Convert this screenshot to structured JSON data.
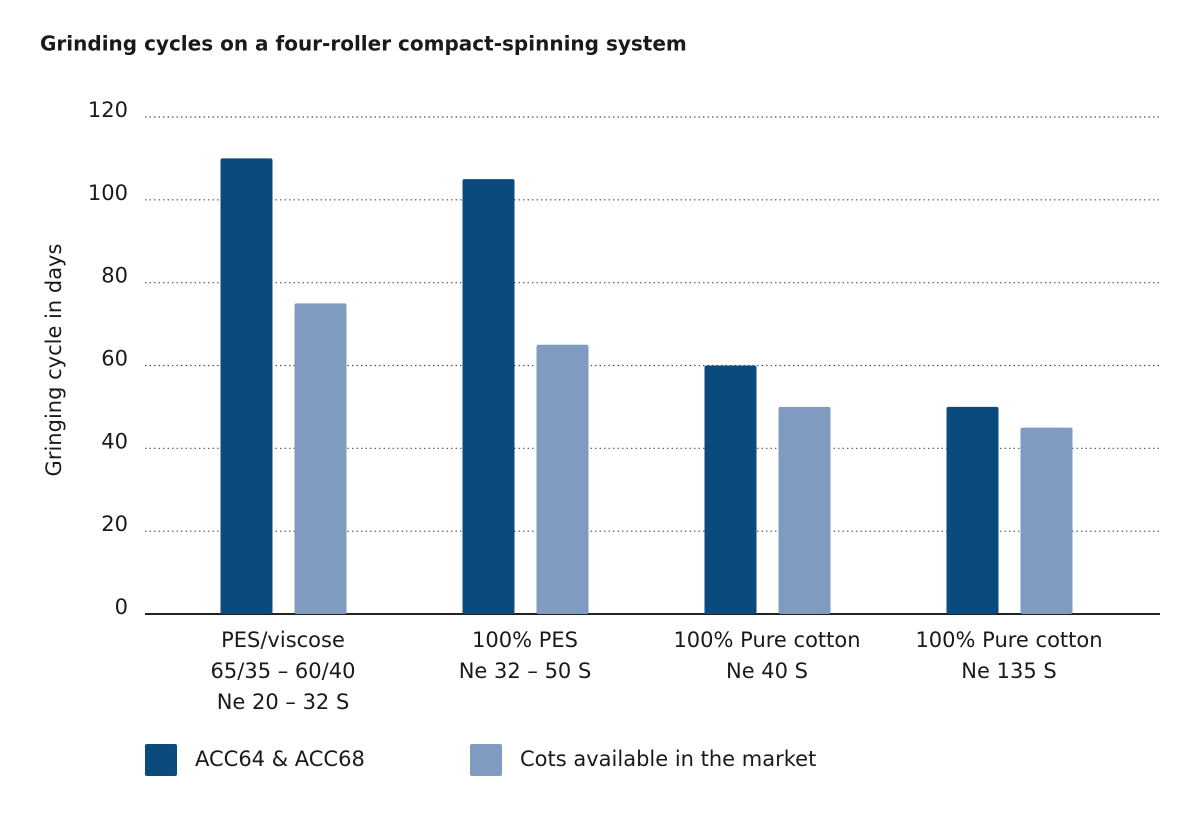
{
  "chart_data": {
    "type": "bar",
    "title": "Grinding cycles on a four-roller compact-spinning system",
    "y_label": "Gringing cycle in days",
    "categories": [
      [
        "PES/viscose",
        "65/35 – 60/40",
        "Ne 20 – 32 S"
      ],
      [
        "100% PES",
        "Ne 32 – 50 S"
      ],
      [
        "100% Pure cotton",
        "Ne 40 S"
      ],
      [
        "100% Pure cotton",
        "Ne 135 S"
      ]
    ],
    "series": [
      {
        "name": "ACC64 & ACC68",
        "color": "#0b4a7d",
        "values": [
          110,
          105,
          60,
          50
        ]
      },
      {
        "name": "Cots available in the market",
        "color": "#7f9bbf",
        "values": [
          75,
          65,
          50,
          45
        ]
      }
    ],
    "ylim": [
      0,
      120
    ],
    "yticks": [
      0,
      20,
      40,
      60,
      80,
      100,
      120
    ],
    "grid": true
  }
}
